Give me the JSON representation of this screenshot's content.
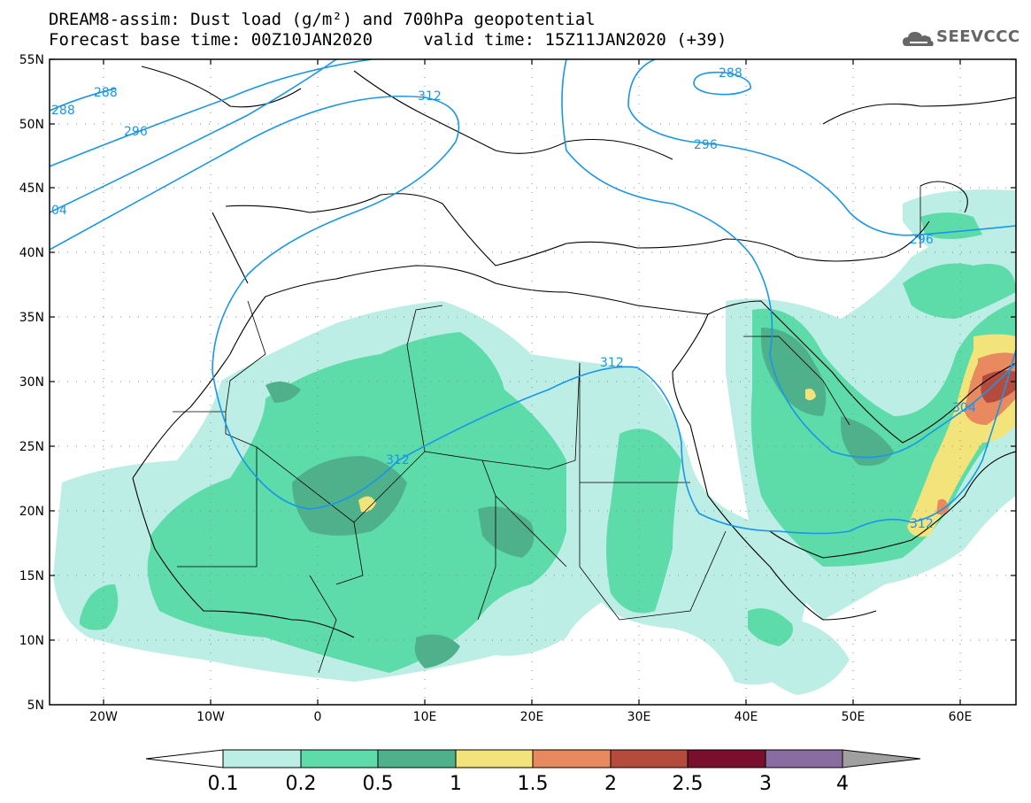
{
  "header": {
    "title_line1": "DREAM8-assim: Dust load (g/m²) and 700hPa geopotential",
    "title_line2": "Forecast base time: 00Z10JAN2020     valid time: 15Z11JAN2020 (+39)",
    "logo_text": "SEEVCCC"
  },
  "map": {
    "lat_labels": [
      "55N",
      "50N",
      "45N",
      "40N",
      "35N",
      "30N",
      "25N",
      "20N",
      "15N",
      "10N",
      "5N"
    ],
    "lon_labels": [
      "20W",
      "10W",
      "0",
      "10E",
      "20E",
      "30E",
      "40E",
      "50E",
      "60E"
    ],
    "lon_range": [
      -25,
      65
    ],
    "lat_range": [
      5,
      55
    ],
    "contour_labels": [
      "288",
      "288",
      "296",
      "04",
      "312",
      "288",
      "296",
      "296",
      "312",
      "312",
      "304",
      "312"
    ]
  },
  "colorbar": {
    "levels": [
      "0.1",
      "0.2",
      "0.5",
      "1",
      "1.5",
      "2",
      "2.5",
      "3",
      "4"
    ],
    "colors": [
      "#ffffff",
      "#bdeee5",
      "#5ddba9",
      "#4fb18b",
      "#f2e37a",
      "#e8895f",
      "#b54b3d",
      "#7a0f2d",
      "#8a6da0",
      "#a0a0a0"
    ]
  },
  "colors": {
    "contour": "#1a96e8",
    "coast": "#000000",
    "dust_light": "#bdeee5",
    "dust_mid": "#5ddba9",
    "dust_dark": "#4fb18b",
    "dust_yellow": "#f2e37a",
    "dust_orange": "#e8895f",
    "dust_red": "#b54b3d"
  }
}
